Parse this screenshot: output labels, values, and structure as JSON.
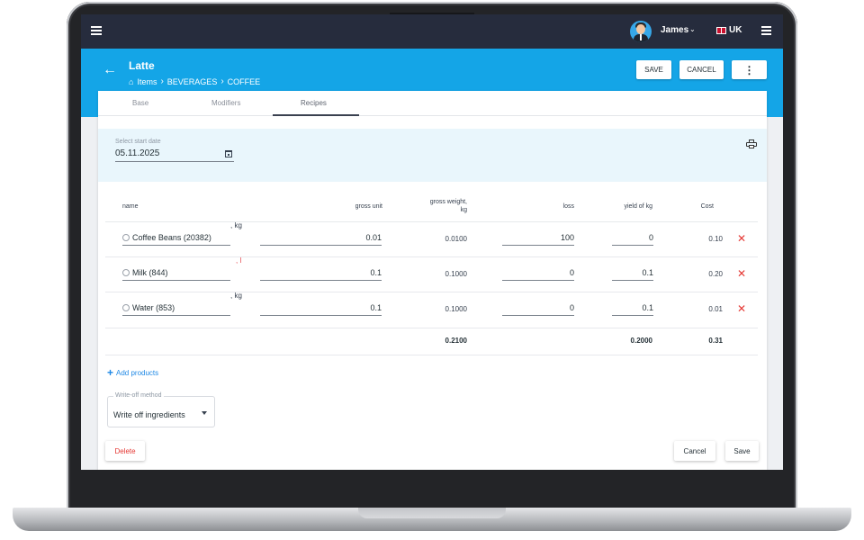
{
  "topbar": {
    "user_name": "James",
    "language": "UK"
  },
  "header": {
    "title": "Latte",
    "breadcrumb": [
      "Items",
      "BEVERAGES",
      "COFFEE"
    ],
    "save_label": "SAVE",
    "cancel_label": "CANCEL"
  },
  "tabs": [
    "Base",
    "Modifiers",
    "Recipes"
  ],
  "active_tab": "Recipes",
  "date": {
    "label": "Select start date",
    "value": "05.11.2025"
  },
  "table": {
    "columns": {
      "name": "name",
      "gross_unit": "gross unit",
      "gross_weight_line1": "gross weight,",
      "gross_weight_line2": "kg",
      "loss": "loss",
      "yield": "yield of kg",
      "cost": "Cost"
    },
    "rows": [
      {
        "name": "Coffee Beans (20382)",
        "unit": ", kg",
        "gross_unit": "0.01",
        "gross_weight": "0.0100",
        "loss": "100",
        "yield": "0",
        "cost": "0.10"
      },
      {
        "name": "Milk (844)",
        "unit": ", l",
        "gross_unit": "0.1",
        "gross_weight": "0.1000",
        "loss": "0",
        "yield": "0.1",
        "cost": "0.20"
      },
      {
        "name": "Water (853)",
        "unit": ", kg",
        "gross_unit": "0.1",
        "gross_weight": "0.1000",
        "loss": "0",
        "yield": "0.1",
        "cost": "0.01"
      }
    ],
    "totals": {
      "gross_weight": "0.2100",
      "yield": "0.2000",
      "cost": "0.31"
    }
  },
  "add_products_label": "Add products",
  "write_off": {
    "label": "Write-off method",
    "value": "Write off ingredients"
  },
  "footer": {
    "delete_label": "Delete",
    "cancel_label": "Cancel",
    "save_label": "Save"
  }
}
